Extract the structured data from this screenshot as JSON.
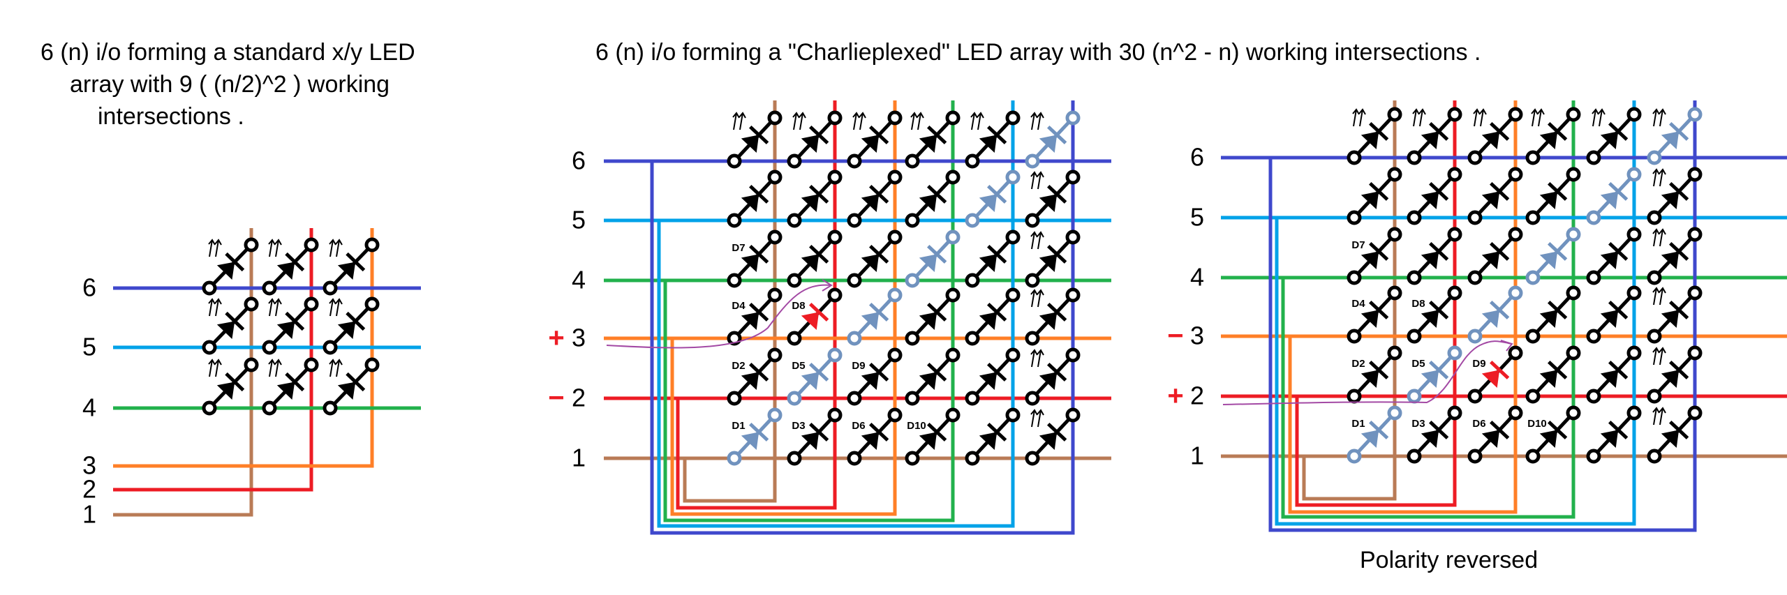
{
  "titles": {
    "standard": [
      "6 (n)  i/o forming a standard x/y LED",
      "array with 9 ( (n/2)^2 ) working",
      "intersections ."
    ],
    "charlie": "6 (n) i/o forming a \"Charlieplexed\"  LED  array with 30 (n^2 - n) working intersections .",
    "reversed_caption": "Polarity reversed"
  },
  "line_labels": [
    "1",
    "2",
    "3",
    "4",
    "5",
    "6"
  ],
  "line_colors": [
    "#b97b56",
    "#ed1c24",
    "#ff7f27",
    "#22b14c",
    "#00a2e8",
    "#3f48cc"
  ],
  "led_colors": {
    "normal": "#000000",
    "diagonal_unused": "#7092be",
    "lit": "#ed1c24",
    "current_path": "#a349a4"
  },
  "diode_labels": [
    {
      "text": "D7",
      "row": 4,
      "col": 1
    },
    {
      "text": "D4",
      "row": 3,
      "col": 1
    },
    {
      "text": "D8",
      "row": 3,
      "col": 2
    },
    {
      "text": "D2",
      "row": 2,
      "col": 1
    },
    {
      "text": "D5",
      "row": 2,
      "col": 2
    },
    {
      "text": "D9",
      "row": 2,
      "col": 3
    },
    {
      "text": "D1",
      "row": 1,
      "col": 1
    },
    {
      "text": "D3",
      "row": 1,
      "col": 2
    },
    {
      "text": "D6",
      "row": 1,
      "col": 3
    },
    {
      "text": "D10",
      "row": 1,
      "col": 4
    }
  ],
  "charlie_arrays": [
    {
      "name": "charlieplexed",
      "signs": [
        {
          "line": 3,
          "text": "+"
        },
        {
          "line": 2,
          "text": "−"
        }
      ],
      "lit_led": {
        "label": "D8",
        "row": 3,
        "col": 2
      }
    },
    {
      "name": "polarity-reversed",
      "signs": [
        {
          "line": 3,
          "text": "−"
        },
        {
          "line": 2,
          "text": "+"
        }
      ],
      "lit_led": {
        "label": "D9",
        "row": 2,
        "col": 3
      }
    }
  ]
}
